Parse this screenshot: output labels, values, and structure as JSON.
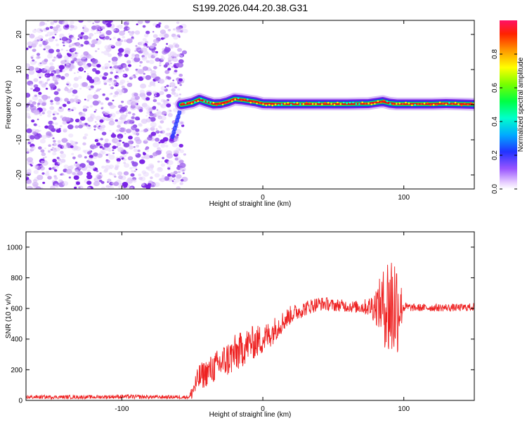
{
  "title": "S199.2026.044.20.38.G31",
  "chart_data": [
    {
      "type": "heatmap",
      "xlabel": "Height of straight line (km)",
      "ylabel": "Frequency (Hz)",
      "xlim": [
        -168,
        150
      ],
      "ylim": [
        -24,
        24
      ],
      "xticks": [
        -100,
        0,
        100
      ],
      "xtick_labels": [
        "-100",
        "0",
        "100"
      ],
      "yticks": [
        -20,
        -10,
        0,
        10,
        20
      ],
      "ytick_labels": [
        "-20",
        "-10",
        "0",
        "10",
        "20"
      ],
      "noise_region_x": [
        -168,
        -57
      ],
      "track": {
        "x": [
          -58,
          -55,
          -50,
          -45,
          -40,
          -35,
          -30,
          -25,
          -20,
          -15,
          -10,
          -5,
          0,
          10,
          30,
          60,
          75,
          80,
          85,
          90,
          95,
          100,
          120,
          130,
          140,
          150
        ],
        "freq": [
          0,
          0.2,
          0.6,
          1.5,
          0.8,
          0.2,
          0.3,
          0.8,
          1.6,
          1.4,
          1.1,
          0.8,
          0.3,
          0.2,
          0.2,
          0.2,
          0.3,
          0.6,
          0.9,
          0.4,
          0.2,
          0.2,
          0.2,
          0.3,
          0.2,
          0.1
        ]
      },
      "colorbar": {
        "label": "Normalized spectral amplitude",
        "range": [
          0,
          1
        ],
        "ticks": [
          0.0,
          0.2,
          0.4,
          0.6,
          0.8
        ],
        "tick_labels": [
          "0.0",
          "0.2",
          "0.4",
          "0.6",
          "0.8"
        ]
      }
    },
    {
      "type": "line",
      "xlabel": "Height of straight line (km)",
      "ylabel": "SNR (10 * v/v)",
      "xlim": [
        -168,
        150
      ],
      "ylim": [
        0,
        1100
      ],
      "xticks": [
        -100,
        0,
        100
      ],
      "xtick_labels": [
        "-100",
        "0",
        "100"
      ],
      "yticks": [
        0,
        200,
        400,
        600,
        800,
        1000
      ],
      "ytick_labels": [
        "0",
        "200",
        "400",
        "600",
        "800",
        "1000"
      ],
      "color": "#ee2222",
      "series": [
        {
          "name": "SNR",
          "x": [
            -168,
            -150,
            -120,
            -100,
            -80,
            -60,
            -52,
            -50,
            -45,
            -40,
            -35,
            -30,
            -25,
            -20,
            -15,
            -10,
            -5,
            0,
            5,
            10,
            15,
            20,
            25,
            30,
            35,
            40,
            45,
            50,
            55,
            60,
            65,
            70,
            75,
            80,
            85,
            90,
            95,
            100,
            105,
            110,
            120,
            130,
            140,
            150
          ],
          "mean": [
            22,
            22,
            22,
            25,
            22,
            22,
            22,
            60,
            150,
            180,
            210,
            240,
            270,
            300,
            330,
            370,
            380,
            400,
            430,
            480,
            520,
            560,
            580,
            600,
            620,
            630,
            630,
            620,
            620,
            615,
            610,
            610,
            610,
            620,
            620,
            620,
            620,
            610,
            605,
            605,
            605,
            605,
            605,
            610
          ],
          "noise": [
            12,
            12,
            12,
            14,
            12,
            12,
            12,
            60,
            90,
            90,
            100,
            110,
            120,
            130,
            120,
            110,
            110,
            100,
            90,
            80,
            70,
            60,
            55,
            50,
            50,
            45,
            45,
            40,
            40,
            40,
            40,
            45,
            60,
            120,
            220,
            420,
            360,
            35,
            25,
            25,
            25,
            25,
            25,
            25
          ]
        }
      ]
    }
  ]
}
